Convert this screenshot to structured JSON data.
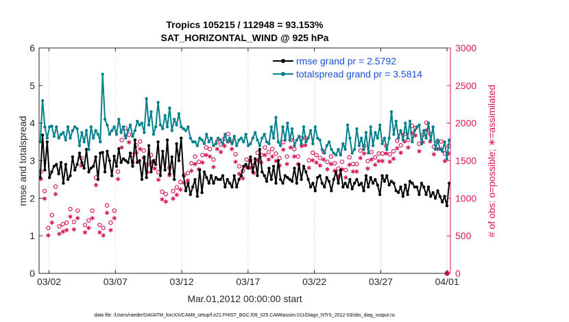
{
  "chart_data": {
    "type": "line",
    "title_line1": "Tropics 105215 / 112948 = 93.153%",
    "title_line2": "SAT_HORIZONTAL_WIND @ 925 hPa",
    "xlabel": "Mar.01,2012 00:00:00 start",
    "ylabel_left": "rmse and totalspread",
    "ylabel_right": "# of obs: o=possible; ∗=assimilated",
    "footer": "data file: /Users/raeder/DAI/ATM_forcXX/CAM6_setup/f.e21.FHIST_BGC.f09_025.CAM6assim.011/Diags_NTrS_2012-03/obs_diag_output.nc",
    "x_ticks": [
      {
        "day": 1,
        "label": "03/02"
      },
      {
        "day": 6,
        "label": "03/07"
      },
      {
        "day": 11,
        "label": "03/12"
      },
      {
        "day": 16,
        "label": "03/17"
      },
      {
        "day": 21,
        "label": "03/22"
      },
      {
        "day": 26,
        "label": "03/27"
      },
      {
        "day": 31,
        "label": "04/01"
      }
    ],
    "xlim": [
      0.25,
      31.25
    ],
    "ylim_left": [
      0,
      6
    ],
    "y_ticks_left": [
      "0",
      "1",
      "2",
      "3",
      "4",
      "5",
      "6"
    ],
    "ylim_right": [
      0,
      3000
    ],
    "y_ticks_right": [
      "0",
      "500",
      "1000",
      "1500",
      "2000",
      "2500",
      "3000"
    ],
    "colors": {
      "rmse": "#000000",
      "spread": "#00808a",
      "obs": "#d6155a",
      "legend_text": "#1a4fd6",
      "right_axis": "#d6155a"
    },
    "series": [
      {
        "name": "rmse grand pr = 2.5792",
        "axis": "left",
        "values": [
          2.55,
          3.68,
          2.75,
          3.5,
          2.55,
          2.7,
          2.85,
          2.9,
          2.65,
          2.95,
          2.4,
          2.9,
          2.5,
          2.6,
          3.1,
          2.75,
          2.9,
          3.2,
          2.95,
          2.8,
          3.3,
          2.7,
          2.8,
          2.85,
          3.1,
          2.5,
          3.2,
          3.22,
          2.7,
          3.25,
          3.0,
          2.6,
          3.12,
          2.85,
          3.32,
          2.95,
          3.05,
          3.0,
          2.95,
          3.2,
          2.85,
          3.55,
          2.95,
          3.0,
          2.5,
          3.1,
          2.55,
          3.4,
          2.7,
          3.0,
          2.9,
          3.5,
          2.6,
          3.25,
          2.75,
          3.55,
          2.65,
          3.1,
          2.5,
          3.45,
          3.0,
          3.6,
          2.6,
          2.2,
          2.4,
          2.1,
          2.3,
          2.5,
          2.05,
          2.75,
          2.15,
          2.7,
          2.55,
          2.4,
          2.6,
          2.4,
          2.55,
          2.5,
          2.5,
          2.6,
          2.3,
          2.5,
          2.4,
          2.3,
          2.6,
          2.3,
          2.5,
          2.6,
          2.85,
          2.9,
          2.8,
          3.1,
          2.7,
          3.05,
          2.6,
          3.3,
          2.7,
          2.6,
          2.45,
          2.8,
          2.5,
          2.85,
          2.4,
          3.0,
          2.5,
          2.4,
          2.6,
          2.55,
          2.5,
          2.45,
          2.8,
          2.4,
          2.9,
          2.5,
          2.85,
          2.7,
          2.5,
          2.3,
          2.4,
          2.2,
          2.55,
          2.6,
          2.4,
          2.3,
          2.55,
          2.45,
          2.2,
          2.5,
          2.7,
          2.4,
          2.75,
          2.3,
          2.4,
          2.3,
          2.5,
          2.25,
          2.4,
          2.5,
          2.35,
          2.4,
          2.2,
          2.6,
          2.3,
          2.55,
          2.4,
          2.5,
          2.35,
          2.1,
          2.6,
          2.45,
          2.6,
          2.35,
          2.45,
          2.4,
          2.2,
          2.15,
          2.3,
          2.05,
          2.35,
          2.1,
          2.45,
          2.4,
          2.3,
          2.3,
          2.1,
          2.4,
          2.3,
          2.1,
          2.3,
          2.05,
          2.15,
          2.0,
          2.2,
          2.05,
          1.9,
          2.05,
          1.8,
          2.4
        ]
      },
      {
        "name": "totalspread grand pr = 3.5814",
        "axis": "left",
        "values": [
          3.5,
          4.6,
          3.9,
          3.6,
          3.9,
          3.92,
          3.65,
          3.9,
          3.6,
          3.7,
          3.75,
          3.55,
          3.9,
          3.6,
          3.8,
          3.9,
          3.85,
          3.4,
          3.75,
          3.5,
          3.8,
          3.3,
          3.9,
          3.6,
          3.8,
          3.7,
          3.5,
          5.3,
          4.1,
          3.95,
          3.7,
          3.8,
          3.9,
          3.7,
          4.1,
          3.75,
          3.9,
          3.6,
          3.8,
          3.95,
          3.65,
          3.8,
          4.05,
          3.95,
          4.0,
          3.75,
          4.65,
          3.95,
          4.3,
          3.7,
          3.9,
          4.55,
          3.95,
          3.85,
          4.2,
          3.9,
          4.4,
          3.8,
          4.1,
          3.95,
          4.25,
          3.9,
          3.85,
          3.8,
          3.9,
          3.6,
          3.5,
          3.5,
          3.4,
          3.6,
          3.55,
          3.45,
          3.7,
          3.5,
          3.6,
          3.4,
          3.45,
          3.6,
          3.55,
          3.45,
          3.7,
          3.5,
          3.6,
          3.45,
          3.65,
          3.4,
          3.55,
          3.6,
          3.5,
          3.7,
          3.4,
          3.45,
          3.6,
          3.75,
          3.55,
          3.4,
          3.6,
          3.7,
          3.5,
          3.45,
          3.9,
          3.6,
          4.15,
          3.5,
          3.4,
          3.9,
          3.55,
          4.0,
          3.55,
          3.85,
          3.4,
          3.55,
          3.65,
          3.45,
          3.9,
          3.5,
          3.6,
          3.8,
          3.45,
          3.9,
          3.6,
          3.55,
          3.3,
          3.2,
          3.4,
          3.5,
          3.3,
          3.2,
          3.15,
          3.3,
          3.15,
          3.45,
          3.3,
          3.95,
          3.6,
          3.2,
          3.3,
          3.85,
          3.4,
          3.6,
          3.3,
          3.75,
          3.2,
          3.9,
          3.4,
          3.75,
          3.6,
          3.95,
          3.45,
          3.6,
          3.3,
          3.6,
          4.3,
          3.7,
          4.05,
          3.6,
          3.8,
          3.55,
          4.0,
          3.6,
          4.05,
          3.5,
          3.8,
          3.9,
          3.95,
          3.45,
          3.8,
          3.6,
          4.0,
          3.55,
          3.9,
          3.3,
          3.55,
          3.3,
          3.25,
          3.5,
          3.05,
          3.55
        ]
      }
    ],
    "obs_possible_vertical_centers": [
      1300,
      1040,
      550,
      720,
      1100,
      570,
      600,
      620,
      800,
      630,
      780,
      1480,
      590,
      650,
      780,
      1220,
      590,
      550,
      850,
      620,
      780,
      1300,
      1720,
      1880,
      1790,
      1520,
      1650,
      1700,
      1580,
      1390,
      1520,
      1440,
      1290,
      1030,
      1000,
      1350,
      1040,
      1090,
      1160,
      1250,
      1280,
      1410,
      1500,
      1430,
      1520,
      1620,
      1600,
      1460,
      1700,
      1660,
      1740,
      1800,
      1700,
      1530,
      1370,
      1310,
      1460,
      1450,
      1380,
      1550,
      1520,
      1620,
      1560,
      1600,
      1540,
      1480,
      1690,
      1500,
      1720,
      1600,
      1500,
      1740,
      1750,
      1450,
      1550,
      1520,
      1480,
      1560,
      1430,
      1500,
      1410,
      1340,
      1430,
      1320,
      1490,
      1400,
      1400,
      1580,
      1640,
      1440,
      1560,
      1490,
      1540,
      1540,
      1640,
      1530,
      1570,
      1710,
      1650,
      1800,
      1720,
      1910,
      1880,
      1670,
      1790,
      1950,
      1800,
      1630,
      1700,
      1700,
      1540,
      1640
    ]
  }
}
